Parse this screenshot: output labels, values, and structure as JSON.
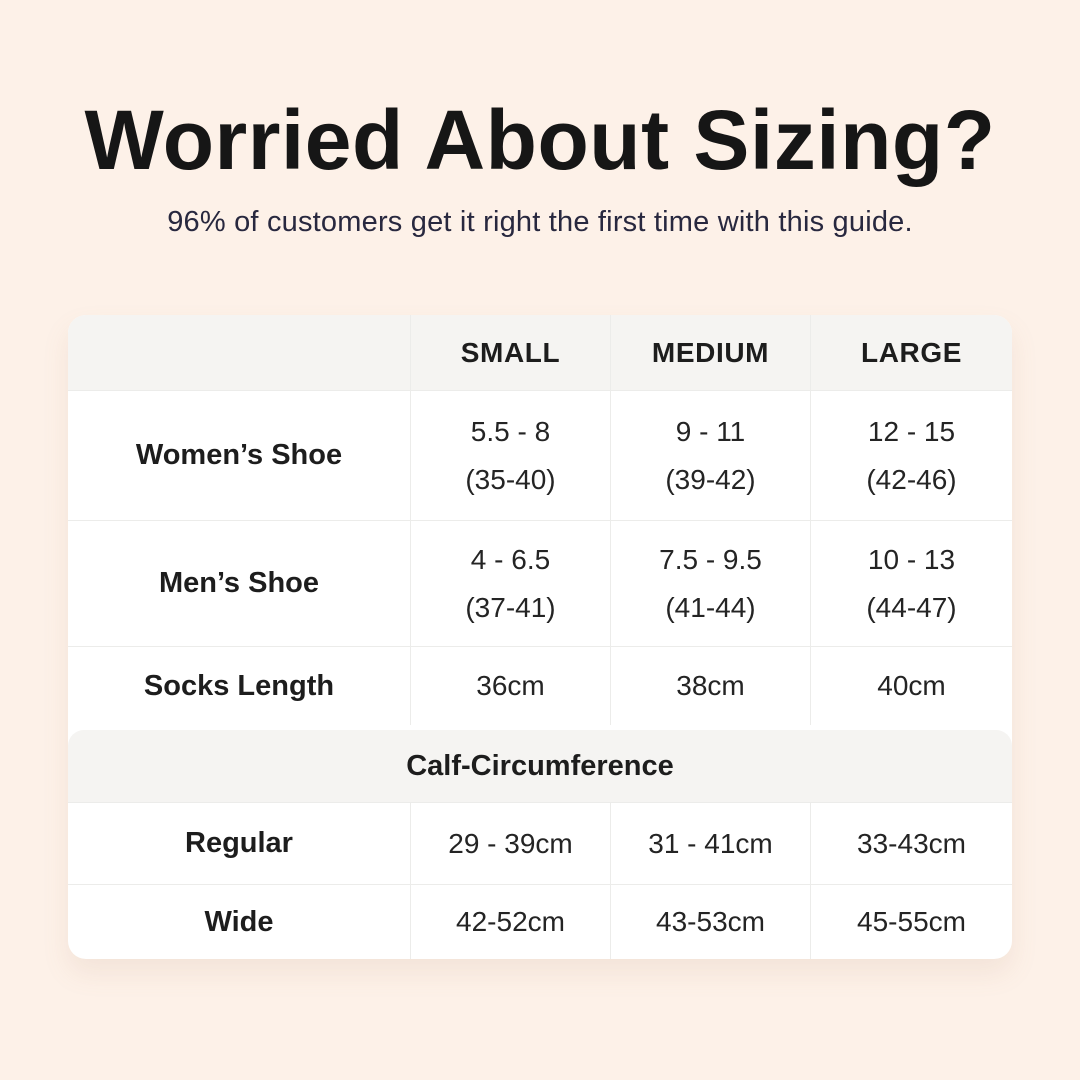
{
  "page": {
    "title": "Worried About Sizing?",
    "subtitle": "96% of customers get it right the first time with this guide."
  },
  "colors": {
    "background": "#fdf1e8",
    "card": "#ffffff",
    "header_band": "#f5f4f2",
    "divider": "#ececea",
    "title_text": "#161616",
    "subtitle_text": "#28283f",
    "table_text": "#1d1d1d"
  },
  "table": {
    "columns": [
      "SMALL",
      "MEDIUM",
      "LARGE"
    ],
    "shoe_rows": [
      {
        "label": "Women’s Shoe",
        "small": [
          "5.5 - 8",
          "(35-40)"
        ],
        "medium": [
          "9 - 11",
          "(39-42)"
        ],
        "large": [
          "12 - 15",
          "(42-46)"
        ]
      },
      {
        "label": "Men’s Shoe",
        "small": [
          "4 - 6.5",
          "(37-41)"
        ],
        "medium": [
          "7.5 - 9.5",
          "(41-44)"
        ],
        "large": [
          "10 - 13",
          "(44-47)"
        ]
      }
    ],
    "socks_row": {
      "label": "Socks Length",
      "small": "36cm",
      "medium": "38cm",
      "large": "40cm"
    },
    "calf_section": {
      "header": "Calf-Circumference",
      "rows": [
        {
          "label": "Regular",
          "small": "29 - 39cm",
          "medium": "31 - 41cm",
          "large": "33-43cm"
        },
        {
          "label": "Wide",
          "small": "42-52cm",
          "medium": "43-53cm",
          "large": "45-55cm"
        }
      ]
    }
  },
  "chart_data": {
    "type": "table",
    "title": "Worried About Sizing?",
    "subtitle": "96% of customers get it right the first time with this guide.",
    "columns": [
      "",
      "SMALL",
      "MEDIUM",
      "LARGE"
    ],
    "rows": [
      [
        "Women’s Shoe",
        "5.5 - 8 (35-40)",
        "9 - 11 (39-42)",
        "12 - 15 (42-46)"
      ],
      [
        "Men’s Shoe",
        "4 - 6.5 (37-41)",
        "7.5 - 9.5 (41-44)",
        "10 - 13 (44-47)"
      ],
      [
        "Socks Length",
        "36cm",
        "38cm",
        "40cm"
      ],
      [
        "Calf-Circumference",
        "",
        "",
        ""
      ],
      [
        "Regular",
        "29 - 39cm",
        "31 - 41cm",
        "33-43cm"
      ],
      [
        "Wide",
        "42-52cm",
        "43-53cm",
        "45-55cm"
      ]
    ],
    "layout": {
      "section_header_row_index": 3,
      "grid": "light-gray dividers",
      "header_band": true
    }
  }
}
